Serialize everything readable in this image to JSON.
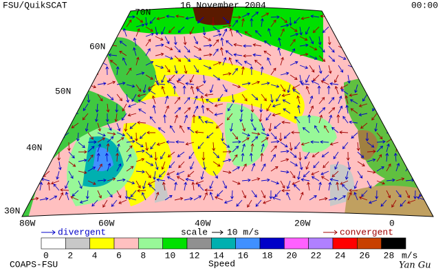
{
  "header": {
    "title": "FSU/QuikSCAT",
    "date": "16 November 2004",
    "time": "00:00"
  },
  "map": {
    "lat_labels": [
      "70N",
      "60N",
      "50N",
      "40N",
      "30N"
    ],
    "lon_labels": [
      "80W",
      "60W",
      "40W",
      "20W",
      "0"
    ]
  },
  "legend": {
    "divergent": "divergent",
    "scale": "scale",
    "scale_value": "10 m/s",
    "convergent": "convergent"
  },
  "colorbar": {
    "ticks": [
      0,
      2,
      4,
      6,
      8,
      10,
      12,
      14,
      16,
      18,
      20,
      22,
      24,
      26,
      28
    ],
    "colors": [
      "#ffffff",
      "#c8c8c8",
      "#ffff00",
      "#ffc0c0",
      "#98f898",
      "#00e000",
      "#909090",
      "#00b0b0",
      "#4090ff",
      "#0000c8",
      "#ff60ff",
      "#b080ff",
      "#ff0000",
      "#c84000",
      "#000000"
    ],
    "unit": "m/s",
    "label": "Speed"
  },
  "footer": {
    "left": "COAPS-FSU",
    "signature": "Yan Gu"
  }
}
